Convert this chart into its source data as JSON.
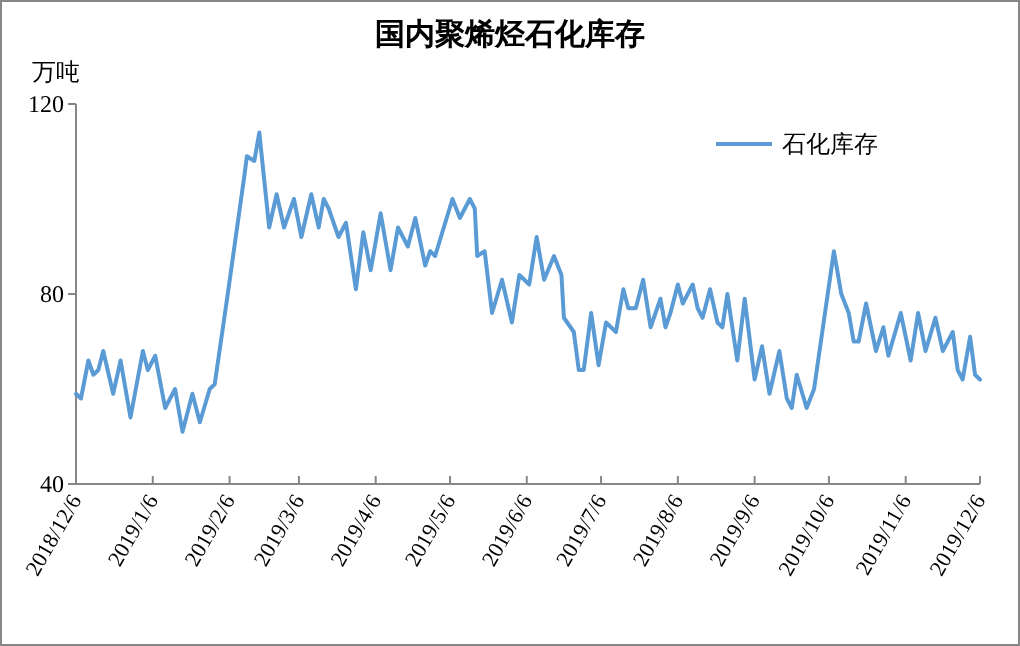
{
  "chart_data": {
    "type": "line",
    "title": "国内聚烯烃石化库存",
    "ylabel": "万吨",
    "x": [
      "2018-12-06",
      "2018-12-08",
      "2018-12-11",
      "2018-12-13",
      "2018-12-15",
      "2018-12-17",
      "2018-12-21",
      "2018-12-24",
      "2018-12-28",
      "2019-01-02",
      "2019-01-04",
      "2019-01-07",
      "2019-01-11",
      "2019-01-15",
      "2019-01-18",
      "2019-01-22",
      "2019-01-25",
      "2019-01-29",
      "2019-01-31",
      "2019-02-05",
      "2019-02-12",
      "2019-02-13",
      "2019-02-16",
      "2019-02-18",
      "2019-02-22",
      "2019-02-25",
      "2019-02-28",
      "2019-03-04",
      "2019-03-07",
      "2019-03-11",
      "2019-03-14",
      "2019-03-16",
      "2019-03-18",
      "2019-03-22",
      "2019-03-25",
      "2019-03-29",
      "2019-04-01",
      "2019-04-04",
      "2019-04-08",
      "2019-04-12",
      "2019-04-15",
      "2019-04-19",
      "2019-04-22",
      "2019-04-26",
      "2019-04-28",
      "2019-04-30",
      "2019-05-07",
      "2019-05-10",
      "2019-05-14",
      "2019-05-16",
      "2019-05-17",
      "2019-05-20",
      "2019-05-23",
      "2019-05-27",
      "2019-05-31",
      "2019-06-03",
      "2019-06-07",
      "2019-06-10",
      "2019-06-13",
      "2019-06-17",
      "2019-06-20",
      "2019-06-21",
      "2019-06-25",
      "2019-06-27",
      "2019-06-29",
      "2019-07-02",
      "2019-07-05",
      "2019-07-08",
      "2019-07-12",
      "2019-07-15",
      "2019-07-17",
      "2019-07-20",
      "2019-07-23",
      "2019-07-26",
      "2019-07-30",
      "2019-08-01",
      "2019-08-03",
      "2019-08-06",
      "2019-08-08",
      "2019-08-12",
      "2019-08-14",
      "2019-08-16",
      "2019-08-19",
      "2019-08-22",
      "2019-08-24",
      "2019-08-26",
      "2019-08-30",
      "2019-09-02",
      "2019-09-06",
      "2019-09-09",
      "2019-09-12",
      "2019-09-16",
      "2019-09-19",
      "2019-09-21",
      "2019-09-23",
      "2019-09-27",
      "2019-09-30",
      "2019-10-08",
      "2019-10-11",
      "2019-10-14",
      "2019-10-16",
      "2019-10-18",
      "2019-10-21",
      "2019-10-25",
      "2019-10-28",
      "2019-10-30",
      "2019-11-04",
      "2019-11-08",
      "2019-11-11",
      "2019-11-14",
      "2019-11-18",
      "2019-11-21",
      "2019-11-25",
      "2019-11-27",
      "2019-11-29",
      "2019-12-02",
      "2019-12-04",
      "2019-12-06"
    ],
    "series": [
      {
        "name": "石化库存",
        "color": "#5b9bd5",
        "values": [
          59,
          58,
          66,
          63,
          64,
          68,
          59,
          66,
          54,
          68,
          64,
          67,
          56,
          60,
          51,
          59,
          53,
          60,
          61,
          79,
          105,
          109,
          108,
          114,
          94,
          101,
          94,
          100,
          92,
          101,
          94,
          100,
          98,
          92,
          95,
          81,
          93,
          85,
          97,
          85,
          94,
          90,
          96,
          86,
          89,
          88,
          100,
          96,
          100,
          98,
          88,
          89,
          76,
          83,
          74,
          84,
          82,
          92,
          83,
          88,
          84,
          75,
          72,
          64,
          64,
          76,
          65,
          74,
          72,
          81,
          77,
          77,
          83,
          73,
          79,
          73,
          76,
          82,
          78,
          82,
          77,
          75,
          81,
          74,
          73,
          80,
          66,
          79,
          62,
          69,
          59,
          68,
          58,
          56,
          63,
          56,
          60,
          89,
          80,
          76,
          70,
          70,
          78,
          68,
          73,
          67,
          76,
          66,
          76,
          68,
          75,
          68,
          72,
          64,
          62,
          71,
          63,
          62
        ]
      }
    ],
    "xlim": [
      "2018-12-06",
      "2019-12-06"
    ],
    "xticks": [
      {
        "value": "2018-12-06",
        "label": "2018/12/6"
      },
      {
        "value": "2019-01-06",
        "label": "2019/1/6"
      },
      {
        "value": "2019-02-06",
        "label": "2019/2/6"
      },
      {
        "value": "2019-03-06",
        "label": "2019/3/6"
      },
      {
        "value": "2019-04-06",
        "label": "2019/4/6"
      },
      {
        "value": "2019-05-06",
        "label": "2019/5/6"
      },
      {
        "value": "2019-06-06",
        "label": "2019/6/6"
      },
      {
        "value": "2019-07-06",
        "label": "2019/7/6"
      },
      {
        "value": "2019-08-06",
        "label": "2019/8/6"
      },
      {
        "value": "2019-09-06",
        "label": "2019/9/6"
      },
      {
        "value": "2019-10-06",
        "label": "2019/10/6"
      },
      {
        "value": "2019-11-06",
        "label": "2019/11/6"
      },
      {
        "value": "2019-12-06",
        "label": "2019/12/6"
      }
    ],
    "ylim": [
      40,
      120
    ],
    "yticks": [
      40,
      80,
      120
    ],
    "legend": "top right",
    "grid": false,
    "marker": "none",
    "line_style": "solid"
  }
}
